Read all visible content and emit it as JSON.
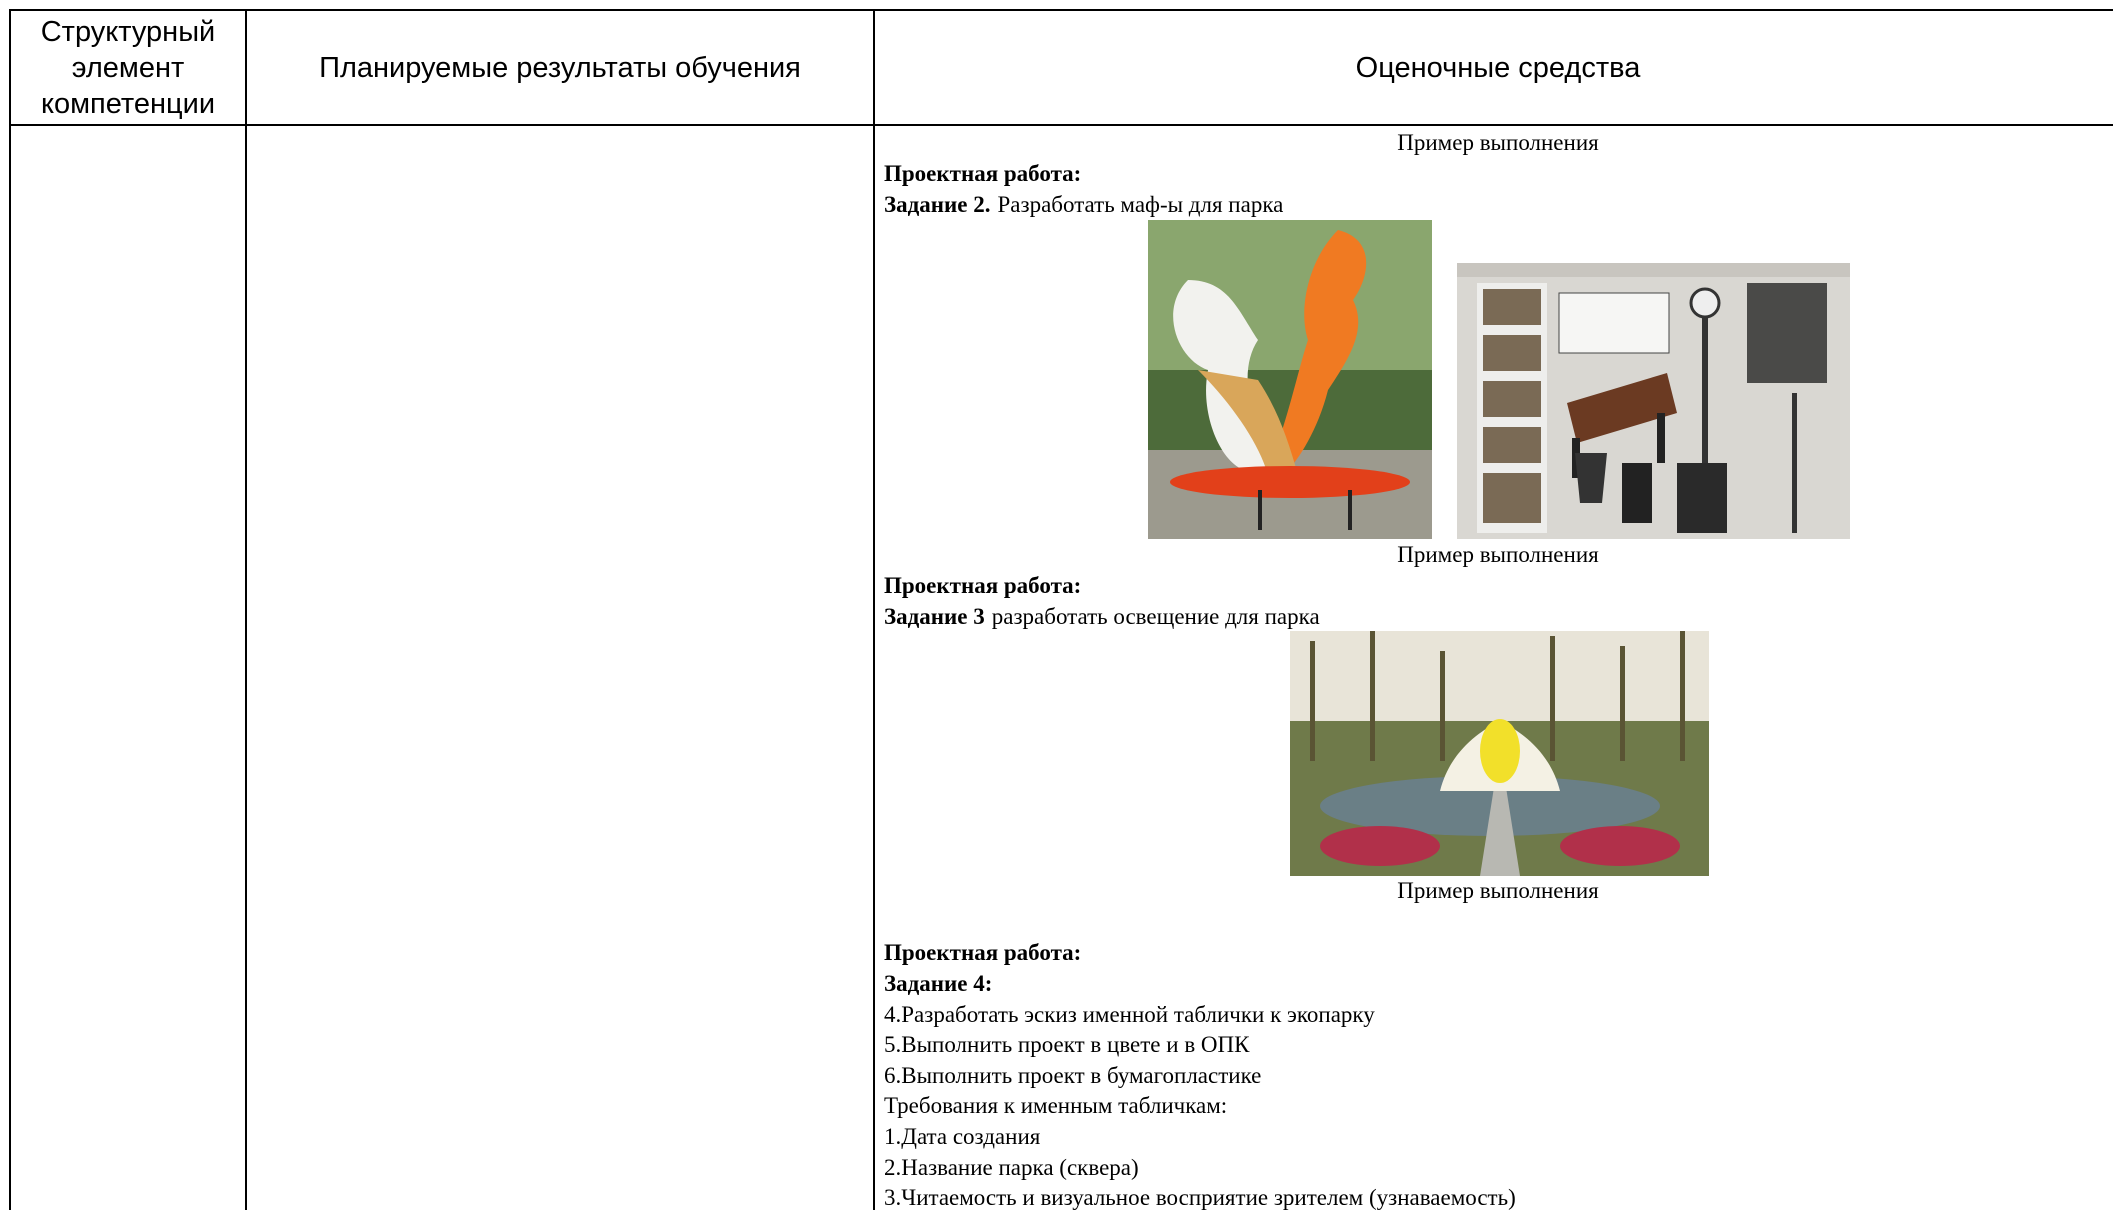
{
  "table": {
    "header": [
      "Структурный элемент компетенции",
      "Планируемые результаты обучения",
      "Оценочные средства"
    ],
    "assessment": [
      {
        "caption": "Пример выполнения"
      },
      {
        "bold": "Проектная работа:"
      },
      {
        "bold": "Задание 2.",
        "text": "Разработать маф-ы для парка"
      },
      {
        "caption": "Пример выполнения"
      },
      {
        "bold": "Проектная работа:"
      },
      {
        "bold": "Задание 3",
        "text": "разработать освещение для парка"
      },
      {
        "caption": "Пример выполнения"
      },
      {
        "bold": "Проектная работа:"
      },
      {
        "bold": "Задание 4:"
      },
      {
        "text": "4.Разработать эскиз именной таблички к экопарку"
      },
      {
        "text": "5.Выполнить проект в цвете и в ОПК"
      },
      {
        "text": "6.Выполнить проект в бумагопластике"
      },
      {
        "text": "Требования к именным табличкам:"
      },
      {
        "text": "1.Дата создания"
      },
      {
        "text": "2.Название парка (сквера)"
      },
      {
        "text": "3.Читаемость и визуальное восприятие зрителем (узнаваемость)"
      }
    ]
  }
}
